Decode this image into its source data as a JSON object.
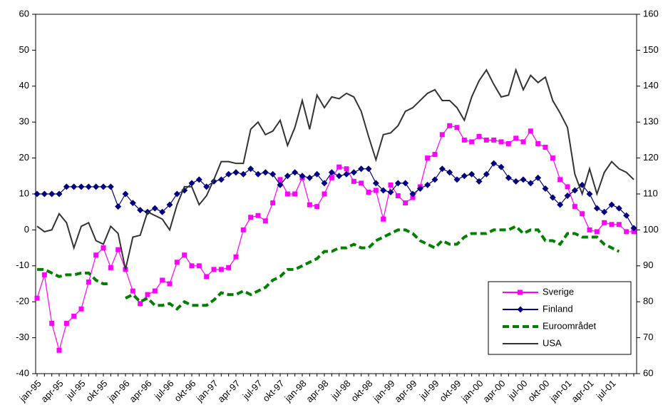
{
  "chart_data": {
    "type": "line",
    "categories": [
      "jan-95",
      null,
      null,
      "apr-95",
      null,
      null,
      "jul-95",
      null,
      null,
      "okt-95",
      null,
      null,
      "jan-96",
      null,
      null,
      "apr-96",
      null,
      null,
      "jul-96",
      null,
      null,
      "okt-96",
      null,
      null,
      "jan-97",
      null,
      null,
      "apr-97",
      null,
      null,
      "jul-97",
      null,
      null,
      "okt-97",
      null,
      null,
      "jan-98",
      null,
      null,
      "apr-98",
      null,
      null,
      "jul-98",
      null,
      null,
      "okt-98",
      null,
      null,
      "jan-99",
      null,
      null,
      "apr-99",
      null,
      null,
      "jul-99",
      null,
      null,
      "okt-99",
      null,
      null,
      "jan-00",
      null,
      null,
      "apr-00",
      null,
      null,
      "jul-00",
      null,
      null,
      "okt-00",
      null,
      null,
      "jan-01",
      null,
      null,
      "apr-01",
      null,
      null,
      "jul-01",
      null,
      null,
      null
    ],
    "series": [
      {
        "name": "Sverige",
        "color": "#ff00ff",
        "marker": "square",
        "values": [
          -19,
          -12.5,
          -26,
          -33.5,
          -26,
          -24,
          -22,
          -14.5,
          -7,
          -5,
          -10.5,
          -5.5,
          -11,
          -17,
          -20.5,
          -18,
          -17,
          -14,
          -15,
          -9,
          -7,
          -10,
          -10,
          -13,
          -11,
          -11,
          -10.5,
          -7.5,
          0,
          3.5,
          4,
          2.5,
          7.5,
          14,
          10,
          10,
          14.5,
          7,
          6.5,
          10,
          14.5,
          17.5,
          17,
          13.5,
          13,
          10.5,
          11,
          3,
          12.5,
          9.5,
          7.5,
          9,
          12,
          20,
          21,
          26.5,
          29,
          28.5,
          25,
          24.5,
          26,
          25,
          25,
          24.5,
          24,
          25.5,
          24.5,
          27.5,
          24,
          23,
          20,
          14,
          12,
          6.5,
          4.5,
          0,
          -0.5,
          2,
          1.5,
          1.5,
          -0.5,
          -0.5
        ]
      },
      {
        "name": "Finland",
        "color": "#000080",
        "marker": "diamond",
        "values": [
          10,
          10,
          10,
          10,
          12,
          12,
          12,
          12,
          12,
          12,
          12,
          6.5,
          10,
          7.5,
          5.5,
          5,
          6,
          5,
          7,
          10,
          11,
          13,
          14,
          12,
          13.5,
          14,
          15.5,
          16,
          15.5,
          17,
          15.5,
          16,
          15.5,
          12.5,
          15,
          16,
          15,
          14.5,
          15.5,
          13,
          16,
          15,
          15.5,
          16,
          17,
          17,
          13,
          11,
          10.5,
          13,
          13,
          10,
          11.5,
          12.5,
          14,
          17,
          16,
          14,
          15,
          15.5,
          13.5,
          15.5,
          18.5,
          17.5,
          14.5,
          13.5,
          14,
          13,
          14.5,
          11.5,
          9,
          7,
          9.5,
          11,
          12.5,
          10,
          6,
          5,
          7,
          6,
          4,
          0.5
        ]
      },
      {
        "name": "Euroområdet",
        "color": "#008000",
        "dashed": true,
        "values": [
          -11,
          -11,
          -12,
          -13,
          -12.5,
          -12.5,
          -12,
          -12,
          -14,
          -15,
          -15,
          null,
          -19,
          -18,
          -20,
          -19,
          -21,
          -21,
          -20.5,
          -22,
          -20,
          -21,
          -21,
          -21,
          -19.5,
          -17.5,
          -18,
          -18,
          -17,
          -18,
          -17,
          -16,
          -14,
          -13,
          -11,
          -11,
          -10,
          -9,
          -8,
          -6,
          -6,
          -5,
          -5,
          -4,
          -5,
          -5,
          -3,
          -2,
          -1,
          0,
          0,
          -1,
          -3,
          -4,
          -5,
          -3,
          -4,
          -4,
          -2,
          -1,
          -1,
          -1,
          0,
          0,
          0,
          1,
          -1,
          0,
          0,
          -3,
          -3,
          -4,
          -1,
          -1,
          -2,
          -2,
          -2,
          -4,
          -5,
          -6,
          null,
          null
        ]
      },
      {
        "name": "USA",
        "color": "#333333",
        "axis": "y2",
        "values": [
          101,
          99.5,
          100,
          104.5,
          102,
          95,
          101,
          102,
          97,
          96,
          101,
          99,
          89,
          98,
          98.5,
          105,
          104,
          103,
          100,
          107,
          112,
          112,
          107,
          109.5,
          114,
          119,
          119,
          118.5,
          118.5,
          128,
          130,
          126.5,
          127.5,
          130.5,
          123.5,
          128.5,
          136,
          128,
          137.5,
          134,
          137,
          136.5,
          138,
          137,
          133,
          126,
          119.5,
          126.5,
          127,
          129,
          133,
          134,
          136,
          138,
          139,
          136,
          136,
          134,
          130.5,
          137,
          141.5,
          144.5,
          140.5,
          137,
          137.5,
          144.5,
          139,
          143,
          141,
          142.5,
          136,
          132.5,
          128.5,
          115.5,
          110,
          117,
          110,
          116,
          119,
          117,
          116,
          114
        ]
      }
    ],
    "ylim": [
      -40,
      60
    ],
    "yticks": [
      -40,
      -30,
      -20,
      -10,
      0,
      10,
      20,
      30,
      40,
      50,
      60
    ],
    "y2lim": [
      60,
      160
    ],
    "y2ticks": [
      60,
      70,
      80,
      90,
      100,
      110,
      120,
      130,
      140,
      150,
      160
    ],
    "legend": "lower right",
    "grid": false
  }
}
